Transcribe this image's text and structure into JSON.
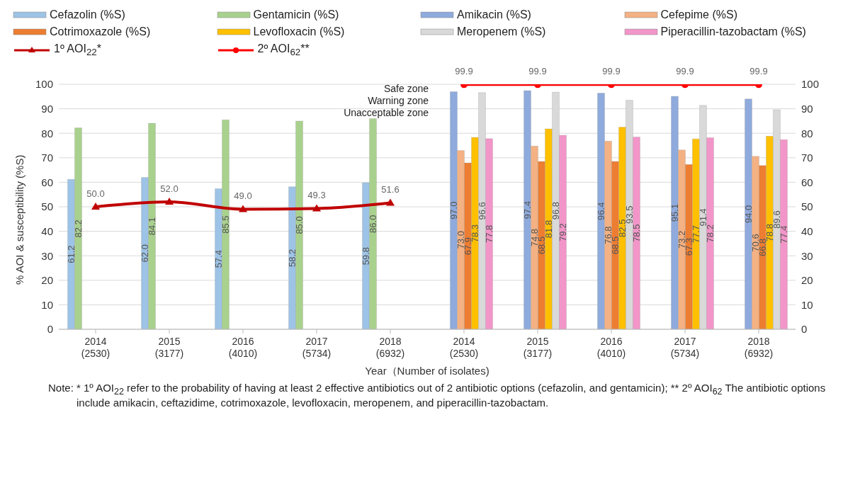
{
  "chart_data": {
    "type": "bar",
    "xlabel": "Year（Number of isolates)",
    "ylabel": "% AOI & susceptibility (%S)",
    "categories": [
      "2014\n(2530)",
      "2015\n(3177)",
      "2016\n(4010)",
      "2017\n(5734)",
      "2018\n(6932)",
      "2014\n(2530)",
      "2015\n(3177)",
      "2016\n(4010)",
      "2017\n(5734)",
      "2018\n(6932)"
    ],
    "series": [
      {
        "name": "Cefazolin (%S)",
        "color": "#9dc3e6",
        "values": [
          61.2,
          62.0,
          57.4,
          58.2,
          59.8,
          null,
          null,
          null,
          null,
          null
        ],
        "value_labels": [
          "61.2",
          "62.0",
          "57.4",
          "58.2",
          "59.8",
          null,
          null,
          null,
          null,
          null
        ]
      },
      {
        "name": "Gentamicin (%S)",
        "color": "#a9d18e",
        "values": [
          82.2,
          84.1,
          85.5,
          85.0,
          86.0,
          null,
          null,
          null,
          null,
          null
        ],
        "value_labels": [
          "82.2",
          "84.1",
          "85.5",
          "85.0",
          "86.0",
          null,
          null,
          null,
          null,
          null
        ]
      },
      {
        "name": "Amikacin (%S)",
        "color": "#8faadc",
        "values": [
          null,
          null,
          null,
          null,
          null,
          97.0,
          97.4,
          96.4,
          95.1,
          94.0
        ],
        "value_labels": [
          null,
          null,
          null,
          null,
          null,
          "97.0",
          "97.4",
          "96.4",
          "95.1",
          "94.0"
        ]
      },
      {
        "name": "Cefepime (%S)",
        "color": "#f4b183",
        "values": [
          null,
          null,
          null,
          null,
          null,
          73.0,
          74.8,
          76.8,
          73.2,
          70.6
        ],
        "value_labels": [
          null,
          null,
          null,
          null,
          null,
          "73.0",
          "74.8",
          "76.8",
          "73.2",
          "70.6"
        ]
      },
      {
        "name": "Cotrimoxazole (%S)",
        "color": "#ed7d31",
        "values": [
          null,
          null,
          null,
          null,
          null,
          67.9,
          68.5,
          68.5,
          67.3,
          66.8
        ],
        "value_labels": [
          null,
          null,
          null,
          null,
          null,
          "67.9",
          "68.5",
          "68.5",
          "67.3",
          "66.8"
        ]
      },
      {
        "name": "Levofloxacin (%S)",
        "color": "#ffc000",
        "values": [
          null,
          null,
          null,
          null,
          null,
          78.3,
          81.8,
          82.5,
          77.7,
          78.8
        ],
        "value_labels": [
          null,
          null,
          null,
          null,
          null,
          "78.3",
          "81.8",
          "82.5",
          "77.7",
          "78.8"
        ]
      },
      {
        "name": "Meropenem (%S)",
        "color": "#d9d9d9",
        "values": [
          null,
          null,
          null,
          null,
          null,
          96.6,
          96.8,
          93.5,
          91.4,
          89.6
        ],
        "value_labels": [
          null,
          null,
          null,
          null,
          null,
          "96.6",
          "96.8",
          "93.5",
          "91.4",
          "89.6"
        ]
      },
      {
        "name": "Piperacillin-tazobactam (%S)",
        "color": "#f295c8",
        "values": [
          null,
          null,
          null,
          null,
          null,
          77.8,
          79.2,
          78.5,
          78.2,
          77.4
        ],
        "value_labels": [
          null,
          null,
          null,
          null,
          null,
          "77.8",
          "79.2",
          "78.5",
          "78.2",
          "77.4"
        ]
      },
      {
        "name": "1º AOI$_{22}$*",
        "type": "line",
        "marker": "triangle",
        "color": "#c00000",
        "values": [
          50.0,
          52.0,
          49.0,
          49.3,
          51.6,
          null,
          null,
          null,
          null,
          null
        ],
        "value_labels": [
          "50.0",
          "52.0",
          "49.0",
          "49.3",
          "51.6",
          null,
          null,
          null,
          null,
          null
        ]
      },
      {
        "name": "2º AOI$_{62}$**",
        "type": "line",
        "marker": "circle",
        "color": "#ff0000",
        "values": [
          null,
          null,
          null,
          null,
          null,
          99.9,
          99.9,
          99.9,
          99.9,
          99.9
        ],
        "value_labels": [
          null,
          null,
          null,
          null,
          null,
          "99.9",
          "99.9",
          "99.9",
          "99.9",
          "99.9"
        ]
      }
    ],
    "ylim": [
      0,
      100
    ],
    "yticks": [
      0,
      10,
      20,
      30,
      40,
      50,
      60,
      70,
      80,
      90,
      100
    ],
    "y2lim": [
      0,
      100
    ],
    "y2ticks": [
      0,
      10,
      20,
      30,
      40,
      50,
      60,
      70,
      80,
      90,
      100
    ],
    "grid": "y",
    "legend": "top",
    "annotations": [
      "Safe zone",
      "Warning zone",
      "Unacceptable zone",
      "Note: * 1º AOI$_{22}$ refer to the probability of having at least 2 effective antibiotics out of 2 antibiotic options (cefazolin, and gentamicin); ** 2º AOI$_{62}$ The antibiotic options include amikacin, ceftazidime, cotrimoxazole, levofloxacin, meropenem, and piperacillin-tazobactam."
    ]
  }
}
